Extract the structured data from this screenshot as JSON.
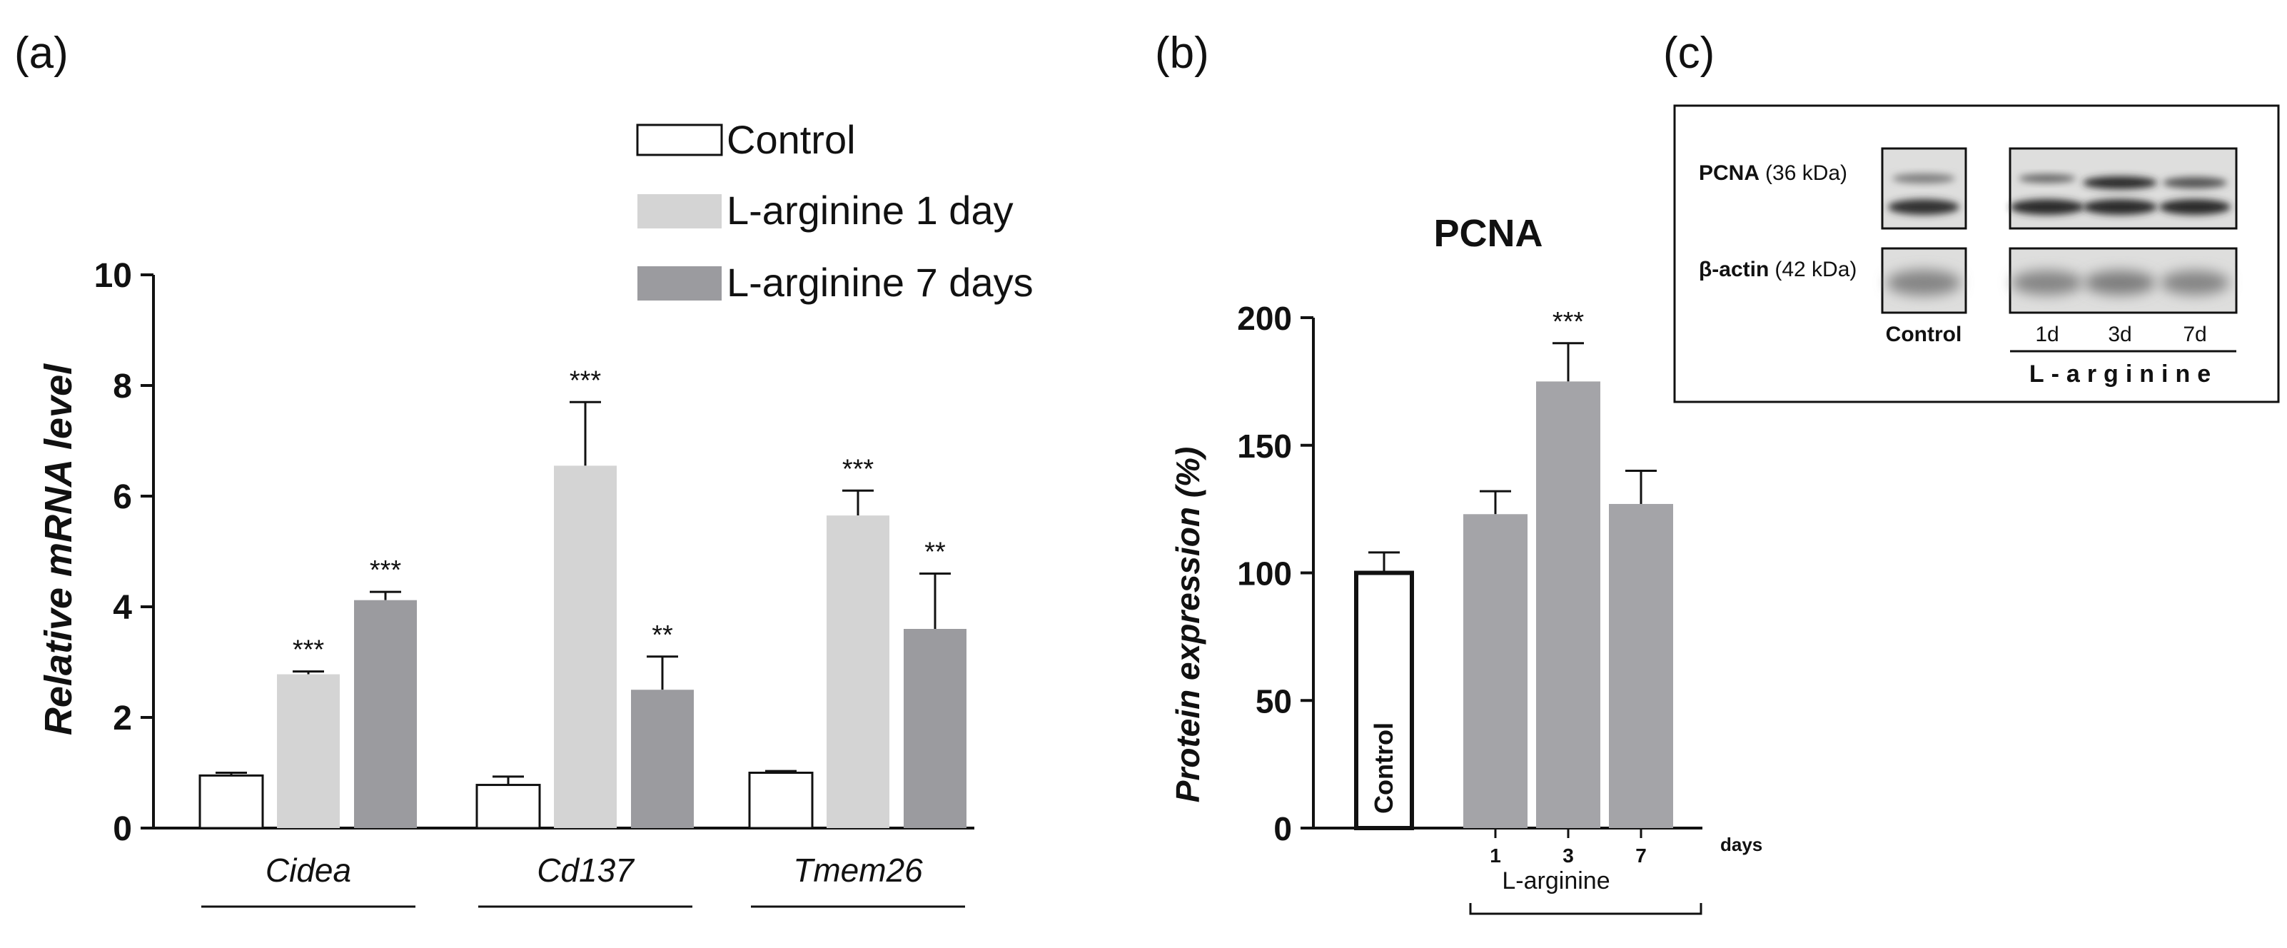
{
  "panels": {
    "a": "(a)",
    "b": "(b)",
    "c": "(c)"
  },
  "legend": [
    {
      "label": "Control",
      "color": "#ffffff"
    },
    {
      "label": "L-arginine 1 day",
      "color": "#d4d4d4"
    },
    {
      "label": "L-arginine 7 days",
      "color": "#9b9b9f"
    }
  ],
  "chart_data": [
    {
      "type": "bar",
      "panel": "a",
      "title": "",
      "ylabel": "Relative mRNA level",
      "xlabel": "",
      "ylim": [
        0,
        10
      ],
      "yticks": [
        "0",
        "2",
        "4",
        "6",
        "8",
        "10"
      ],
      "categories": [
        "Cidea",
        "Cd137",
        "Tmem26"
      ],
      "series": [
        {
          "name": "Control",
          "color": "#ffffff",
          "values": [
            0.95,
            0.78,
            1.0
          ],
          "errors": [
            0.05,
            0.15,
            0.03
          ],
          "sig": [
            "",
            "",
            ""
          ]
        },
        {
          "name": "L-arginine 1 day",
          "color": "#d4d4d4",
          "values": [
            2.78,
            6.55,
            5.65
          ],
          "errors": [
            0.05,
            1.15,
            0.45
          ],
          "sig": [
            "***",
            "***",
            "***"
          ]
        },
        {
          "name": "L-arginine 7 days",
          "color": "#9b9b9f",
          "values": [
            4.12,
            2.5,
            3.6
          ],
          "errors": [
            0.15,
            0.6,
            1.0
          ],
          "sig": [
            "***",
            "**",
            "**"
          ]
        }
      ]
    },
    {
      "type": "bar",
      "panel": "b",
      "title": "PCNA",
      "ylabel": "Protein expression (%)",
      "xlabel": "L-arginine",
      "xunit": "days",
      "ylim": [
        0,
        200
      ],
      "yticks": [
        "0",
        "50",
        "100",
        "150",
        "200"
      ],
      "bars": [
        {
          "label": "Control",
          "tick": "",
          "value": 100,
          "error": 8,
          "color": "#ffffff",
          "sig": ""
        },
        {
          "label": "",
          "tick": "1",
          "value": 123,
          "error": 9,
          "color": "#a4a4a8",
          "sig": ""
        },
        {
          "label": "",
          "tick": "3",
          "value": 175,
          "error": 15,
          "color": "#a4a4a8",
          "sig": "***"
        },
        {
          "label": "",
          "tick": "7",
          "value": 127,
          "error": 13,
          "color": "#a4a4a8",
          "sig": ""
        }
      ]
    }
  ],
  "blot": {
    "rows": [
      {
        "protein": "PCNA",
        "kda": "(36 kDa)"
      },
      {
        "protein": "β-actin",
        "kda": "(42 kDa)"
      }
    ],
    "control_label": "Control",
    "lanes": [
      "1d",
      "3d",
      "7d"
    ],
    "group_label": "L-arginine"
  }
}
